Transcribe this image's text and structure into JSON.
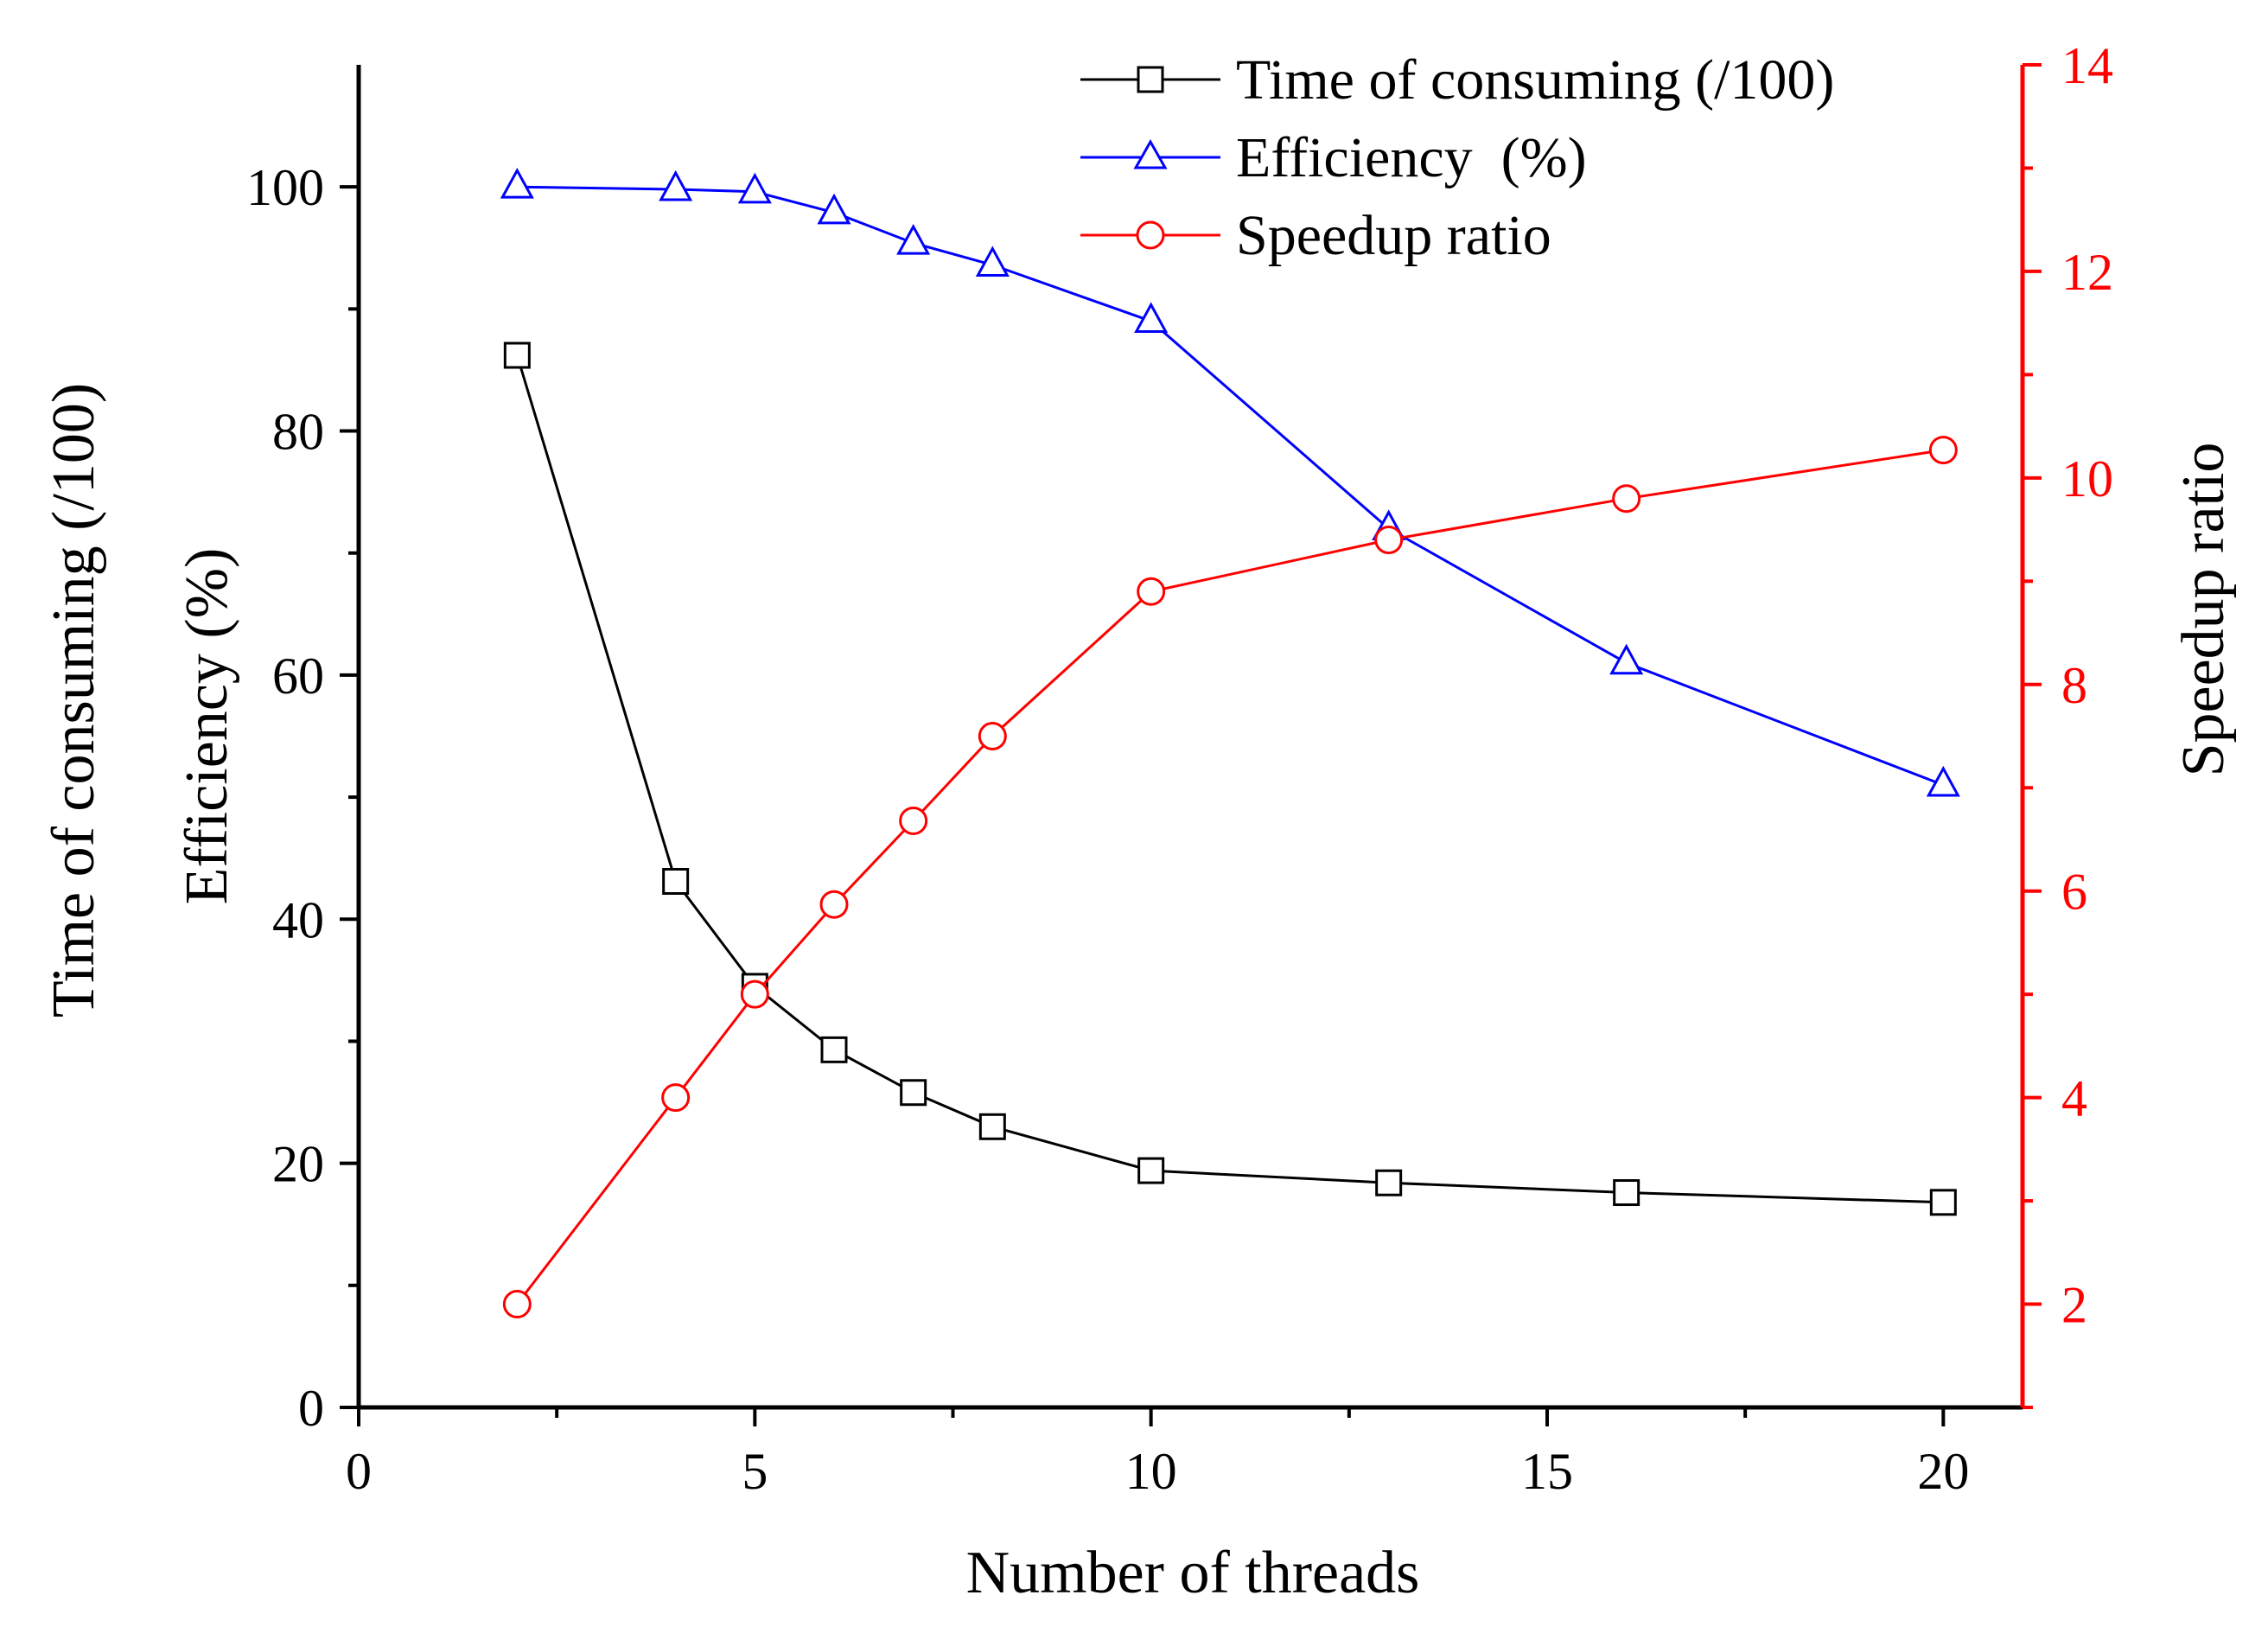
{
  "chart_data": {
    "type": "line",
    "x": [
      2,
      4,
      5,
      6,
      7,
      8,
      10,
      13,
      16,
      20
    ],
    "xlabel": "Number of threads",
    "xlim": [
      0,
      21
    ],
    "x_ticks": [
      0,
      5,
      10,
      15,
      20
    ],
    "x_tick_labels": [
      "0",
      "5",
      "10",
      "15",
      "20"
    ],
    "left_axis": {
      "label_outer": "Time of consuming (/100)",
      "label_inner": "Efficiency (%)",
      "ylim": [
        0,
        110
      ],
      "ticks": [
        0,
        20,
        40,
        60,
        80,
        100
      ],
      "tick_labels": [
        "0",
        "20",
        "40",
        "60",
        "80",
        "100"
      ],
      "color": "#000000"
    },
    "right_axis": {
      "label": "Speedup ratio",
      "ylim": [
        1,
        14
      ],
      "ticks": [
        2,
        4,
        6,
        8,
        10,
        12,
        14
      ],
      "tick_labels": [
        "2",
        "4",
        "6",
        "8",
        "10",
        "12",
        "14"
      ],
      "color": "#ff0000"
    },
    "series": [
      {
        "name": "Time of consuming (/100)",
        "axis": "left",
        "marker": "square",
        "color": "#000000",
        "values": [
          86.2,
          43.1,
          34.5,
          29.3,
          25.8,
          23.0,
          19.4,
          18.4,
          17.6,
          16.8
        ]
      },
      {
        "name": "Efficiency  (%)",
        "axis": "left",
        "marker": "triangle",
        "color": "#0000ff",
        "values": [
          100,
          99.8,
          99.6,
          97.9,
          95.4,
          93.6,
          89.0,
          72.0,
          61.0,
          51.0
        ]
      },
      {
        "name": "Speedup ratio",
        "axis": "right",
        "marker": "circle",
        "color": "#ff0000",
        "values": [
          2.0,
          4.0,
          5.0,
          5.87,
          6.68,
          7.5,
          8.9,
          9.4,
          9.8,
          10.27
        ]
      }
    ],
    "legend": "top-center",
    "grid": false
  }
}
